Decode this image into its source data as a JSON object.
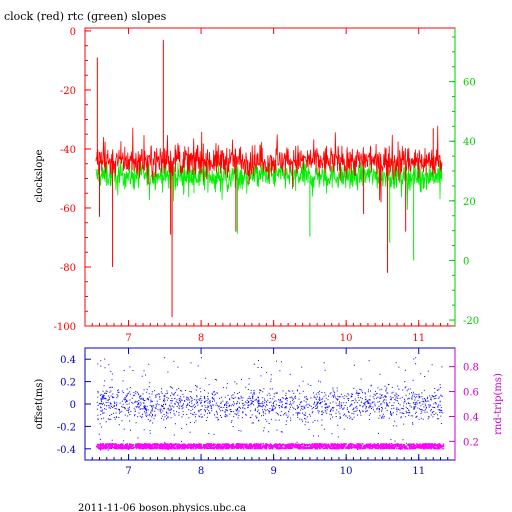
{
  "page": {
    "title": "clock (red) rtc (green) slopes",
    "footer": "2011-11-06  boson.physics.ubc.ca"
  },
  "chart_data": [
    {
      "type": "line",
      "title": "clock (red) rtc (green) slopes",
      "ylabel": "clockslope",
      "xlim": [
        6.4,
        11.5
      ],
      "ylim": [
        -100,
        1
      ],
      "y2lim": [
        -22,
        78
      ],
      "x_ticks": [
        7,
        8,
        9,
        10,
        11
      ],
      "y_ticks": [
        0,
        -20,
        -40,
        -60,
        -80,
        -100
      ],
      "y2_ticks": [
        60,
        40,
        20,
        0,
        -20
      ],
      "grid": false,
      "colors": {
        "axes": "#ff0000",
        "right_axis": "#00cc00",
        "clock": "#ff0000",
        "rtc": "#00ee00"
      },
      "series": [
        {
          "color": "red",
          "axis": "left",
          "typical_range": [
            -50,
            -36
          ],
          "x_range": [
            6.55,
            11.32
          ],
          "spikes": [
            [
              6.57,
              -9
            ],
            [
              6.6,
              -63
            ],
            [
              6.78,
              -80
            ],
            [
              7.27,
              -52
            ],
            [
              7.48,
              -3
            ],
            [
              7.58,
              -69
            ],
            [
              7.6,
              -97
            ],
            [
              8.48,
              -68
            ],
            [
              10.24,
              -62
            ],
            [
              10.48,
              -58
            ],
            [
              10.57,
              -82
            ],
            [
              10.82,
              -68
            ],
            [
              11.2,
              -33
            ]
          ]
        },
        {
          "color": "green",
          "axis": "right",
          "typical_range": [
            24,
            33
          ],
          "x_range": [
            6.55,
            11.32
          ],
          "dips": [
            [
              7.6,
              8
            ],
            [
              8.5,
              9
            ],
            [
              9.5,
              8
            ],
            [
              10.6,
              6
            ],
            [
              10.93,
              0
            ]
          ]
        }
      ]
    },
    {
      "type": "scatter",
      "ylabel": "offset(ms)",
      "y2label": "rnd-trip(ms)",
      "xlim": [
        6.4,
        11.5
      ],
      "ylim": [
        -0.5,
        0.5
      ],
      "y2lim": [
        0.05,
        0.95
      ],
      "x_ticks": [
        7,
        8,
        9,
        10,
        11
      ],
      "y_ticks": [
        "0.4",
        "0.2",
        "0",
        "-0.2",
        "-0.4"
      ],
      "y2_ticks": [
        "0.8",
        "0.6",
        "0.4",
        "0.2"
      ],
      "grid": false,
      "colors": {
        "axes": "#0000cc",
        "right_axis": "#cc00cc",
        "offset": "#0000ff",
        "rndtrip": "#ff00ff"
      },
      "series": [
        {
          "color": "blue",
          "axis": "left",
          "typical_range": [
            -0.15,
            0.15
          ],
          "full_range": [
            -0.42,
            0.42
          ]
        },
        {
          "color": "magenta",
          "axis": "right",
          "typical_value": 0.16,
          "range": [
            0.14,
            0.18
          ]
        }
      ]
    }
  ]
}
